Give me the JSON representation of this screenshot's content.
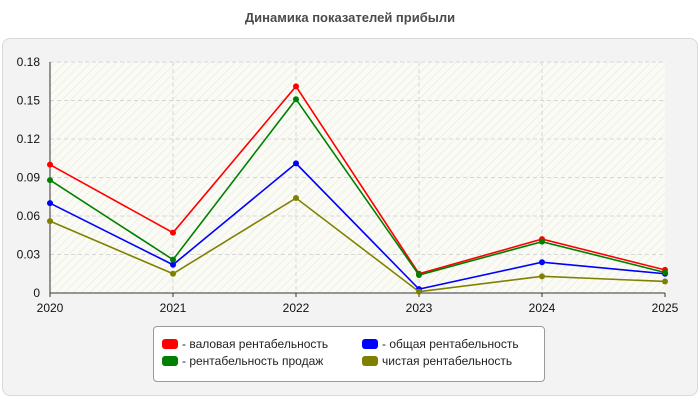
{
  "chart_data": {
    "type": "line",
    "title": "Динамика показателей прибыли",
    "x": [
      "2020",
      "2021",
      "2022",
      "2023",
      "2024",
      "2025"
    ],
    "ylim": [
      0,
      0.18
    ],
    "yticks": [
      "0",
      "0.03",
      "0.06",
      "0.09",
      "0.12",
      "0.15",
      "0.18"
    ],
    "grid": true,
    "legend_position": "bottom",
    "series": [
      {
        "name": "- валовая рентабельность",
        "color": "#ff0000",
        "values": [
          0.1,
          0.047,
          0.161,
          0.015,
          0.042,
          0.018
        ]
      },
      {
        "name": "- общая рентабельность",
        "color": "#0000ff",
        "values": [
          0.07,
          0.022,
          0.101,
          0.003,
          0.024,
          0.015
        ]
      },
      {
        "name": "- рентабельность продаж",
        "color": "#008000",
        "values": [
          0.088,
          0.026,
          0.151,
          0.014,
          0.04,
          0.016
        ]
      },
      {
        "name": "чистая рентабельность",
        "color": "#808000",
        "values": [
          0.056,
          0.015,
          0.074,
          0.001,
          0.013,
          0.009
        ]
      }
    ]
  }
}
